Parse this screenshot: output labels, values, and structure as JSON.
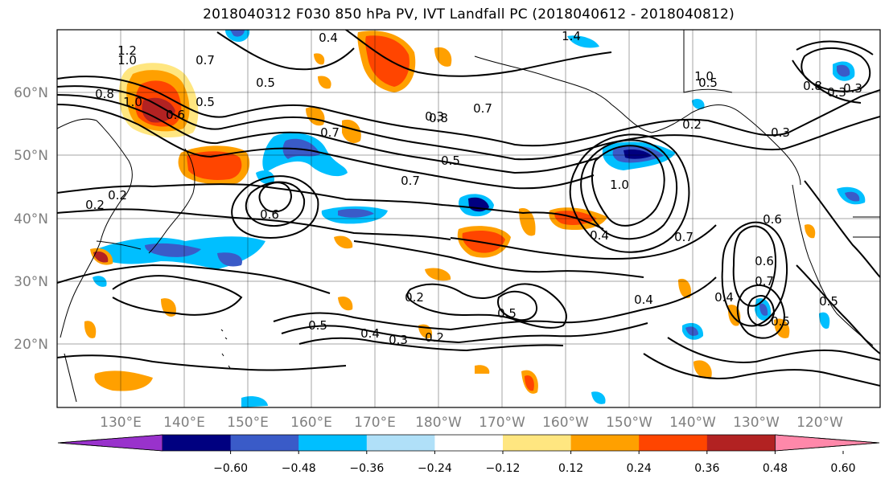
{
  "title": "2018040312 F030 850 hPa PV, IVT Landfall PC (2018040612 - 2018040812)",
  "lat_labels": [
    "60°N",
    "50°N",
    "40°N",
    "30°N",
    "20°N"
  ],
  "lon_labels": [
    "130°E",
    "140°E",
    "150°E",
    "160°E",
    "170°E",
    "180°W",
    "170°W",
    "160°W",
    "150°W",
    "140°W",
    "130°W",
    "120°W"
  ],
  "colorbar": {
    "ticks": [
      "−0.60",
      "−0.48",
      "−0.36",
      "−0.24",
      "−0.12",
      "0.12",
      "0.24",
      "0.36",
      "0.48",
      "0.60"
    ],
    "colors": [
      "#9932cc",
      "#000080",
      "#3a5bc8",
      "#00bfff",
      "#b0e0f8",
      "#ffffff",
      "#ffe680",
      "#ffa000",
      "#ff4500",
      "#b22222",
      "#ff88aa"
    ]
  },
  "contour_labels": [
    "1.2",
    "1.0",
    "0.7",
    "0.5",
    "0.4",
    "1.4",
    "0.8",
    "1.0",
    "0.6",
    "0.7",
    "0.3",
    "0.2",
    "0.6",
    "0.5",
    "0.7",
    "0.8",
    "0.7",
    "1.0",
    "0.5",
    "0.2",
    "0.4",
    "0.2",
    "0.5",
    "0.4",
    "0.2",
    "0.3",
    "0.5",
    "0.7",
    "0.3",
    "0.6",
    "0.4",
    "0.7",
    "0.5",
    "0.5",
    "0.4",
    "0.3",
    "0.3",
    "0.6",
    "1.0",
    "0.8",
    "0.5",
    "0.2"
  ]
}
